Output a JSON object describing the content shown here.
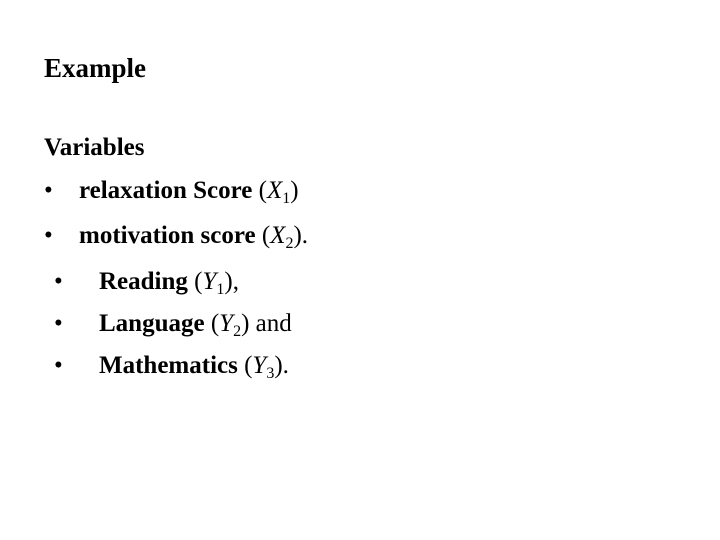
{
  "title": "Example",
  "variables_heading": "Variables",
  "items": [
    {
      "label": "relaxation Score",
      "open": "(",
      "var": "X",
      "sub": "1",
      "close": ")",
      "suffix": ""
    },
    {
      "label": "motivation score",
      "open": "(",
      "var": "X",
      "sub": "2",
      "close": ")",
      "suffix": "."
    },
    {
      "label": "Reading",
      "open": "(",
      "var": "Y",
      "sub": "1",
      "close": ")",
      "suffix": ","
    },
    {
      "label": "Language",
      "open": "(",
      "var": "Y",
      "sub": "2",
      "close": ")",
      "suffix": " and"
    },
    {
      "label": "Mathematics",
      "open": "(",
      "var": "Y",
      "sub": "3",
      "close": ")",
      "suffix": "."
    }
  ],
  "bullet": "•"
}
